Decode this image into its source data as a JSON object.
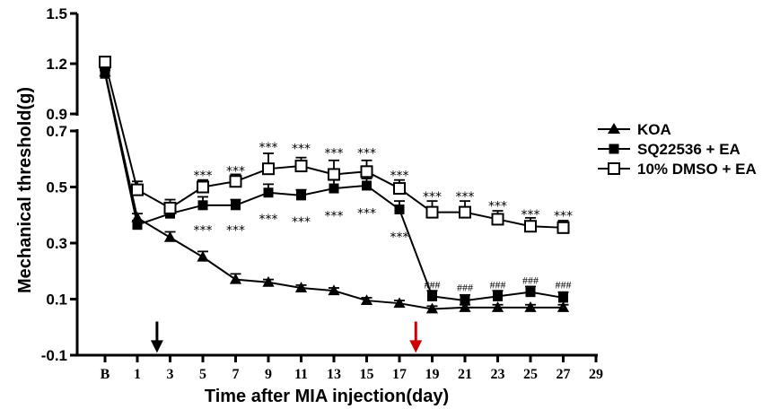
{
  "chart_data": {
    "type": "line",
    "xlabel": "Time after MIA injection(day)",
    "ylabel": "Mechanical threshold(g)",
    "x_tick_labels": [
      "B",
      "1",
      "3",
      "5",
      "7",
      "9",
      "11",
      "13",
      "15",
      "17",
      "19",
      "21",
      "23",
      "25",
      "27",
      "29"
    ],
    "y_tick_labels_upper": [
      "0.9",
      "1.2",
      "1.5"
    ],
    "y_tick_labels_lower": [
      "-0.1",
      "0.1",
      "0.3",
      "0.5",
      "0.7"
    ],
    "y_axis_break": [
      0.7,
      0.9
    ],
    "ylim": [
      -0.1,
      1.5
    ],
    "x": [
      "B",
      1,
      3,
      5,
      7,
      9,
      11,
      13,
      15,
      17,
      19,
      21,
      23,
      25,
      27
    ],
    "series": [
      {
        "name": "KOA",
        "marker": "filled-triangle",
        "values": [
          1.15,
          0.39,
          0.32,
          0.25,
          0.17,
          0.16,
          0.14,
          0.13,
          0.095,
          0.085,
          0.065,
          0.07,
          0.07,
          0.07,
          0.07
        ],
        "errors": [
          0.02,
          0.015,
          0.02,
          0.02,
          0.02,
          0.01,
          0.01,
          0.01,
          0.01,
          0.01,
          0.01,
          0.01,
          0.01,
          0.01,
          0.01
        ]
      },
      {
        "name": "SQ22536 + EA",
        "marker": "filled-square",
        "values": [
          1.14,
          0.365,
          0.405,
          0.435,
          0.435,
          0.48,
          0.47,
          0.495,
          0.505,
          0.42,
          0.11,
          0.095,
          0.11,
          0.125,
          0.105
        ],
        "errors": [
          0.02,
          0.015,
          0.025,
          0.03,
          0.02,
          0.03,
          0.02,
          0.03,
          0.025,
          0.03,
          0.02,
          0.02,
          0.02,
          0.02,
          0.02
        ]
      },
      {
        "name": "10% DMSO + EA",
        "marker": "open-square",
        "values": [
          1.21,
          0.49,
          0.425,
          0.5,
          0.52,
          0.565,
          0.575,
          0.545,
          0.555,
          0.495,
          0.41,
          0.41,
          0.385,
          0.36,
          0.355
        ],
        "errors": [
          0.02,
          0.03,
          0.03,
          0.025,
          0.025,
          0.055,
          0.03,
          0.05,
          0.04,
          0.03,
          0.04,
          0.04,
          0.03,
          0.03,
          0.025
        ]
      }
    ],
    "annotations": [
      {
        "text": "***",
        "x": 5,
        "y": 0.555
      },
      {
        "text": "***",
        "x": 7,
        "y": 0.57
      },
      {
        "text": "***",
        "x": 9,
        "y": 0.655
      },
      {
        "text": "***",
        "x": 11,
        "y": 0.65
      },
      {
        "text": "***",
        "x": 13,
        "y": 0.635
      },
      {
        "text": "***",
        "x": 15,
        "y": 0.635
      },
      {
        "text": "***",
        "x": 17,
        "y": 0.555
      },
      {
        "text": "***",
        "x": 19,
        "y": 0.48
      },
      {
        "text": "***",
        "x": 21,
        "y": 0.48
      },
      {
        "text": "***",
        "x": 23,
        "y": 0.445
      },
      {
        "text": "***",
        "x": 25,
        "y": 0.415
      },
      {
        "text": "***",
        "x": 27,
        "y": 0.41
      },
      {
        "text": "***",
        "x": 5,
        "y": 0.36
      },
      {
        "text": "***",
        "x": 7,
        "y": 0.36
      },
      {
        "text": "***",
        "x": 9,
        "y": 0.4
      },
      {
        "text": "***",
        "x": 11,
        "y": 0.39
      },
      {
        "text": "***",
        "x": 13,
        "y": 0.41
      },
      {
        "text": "***",
        "x": 15,
        "y": 0.42
      },
      {
        "text": "***",
        "x": 17,
        "y": 0.335
      },
      {
        "text": "###",
        "x": 19,
        "y": 0.155
      },
      {
        "text": "###",
        "x": 21,
        "y": 0.145
      },
      {
        "text": "###",
        "x": 23,
        "y": 0.155
      },
      {
        "text": "###",
        "x": 25,
        "y": 0.17
      },
      {
        "text": "###",
        "x": 27,
        "y": 0.155
      }
    ],
    "arrows": [
      {
        "color": "#000000",
        "x": 2.2,
        "y_from": 0.02,
        "y_to": -0.085
      },
      {
        "color": "#cc0000",
        "x": 18,
        "y_from": 0.02,
        "y_to": -0.085
      }
    ],
    "legend_position": "right",
    "grid": false
  }
}
